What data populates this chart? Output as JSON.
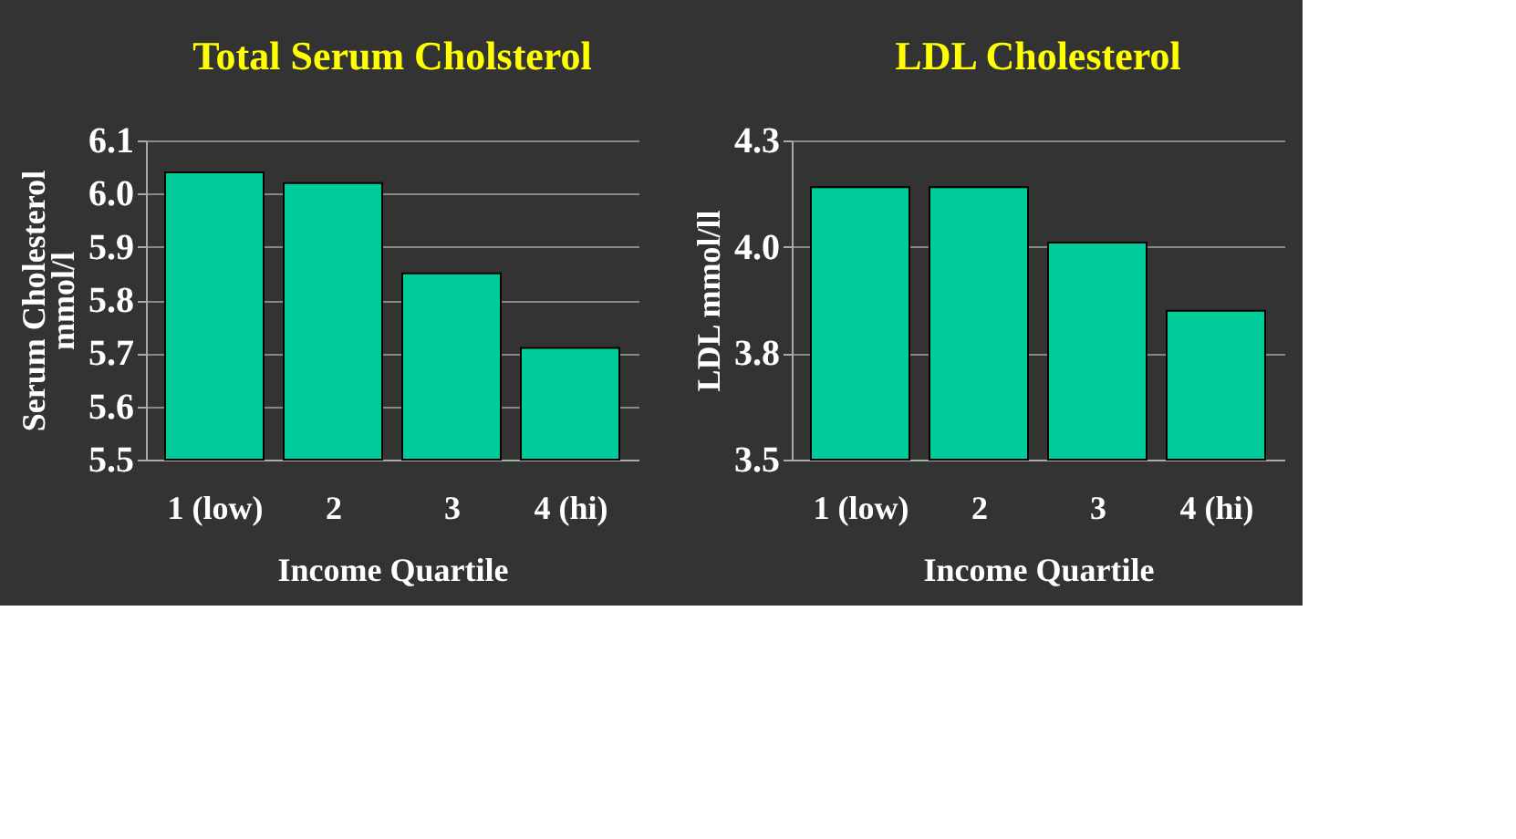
{
  "chart_data": [
    {
      "type": "bar",
      "title": "Total Serum Cholsterol",
      "xlabel": "Income Quartile",
      "ylabel": "Serum Cholesterol\nmmol/l",
      "categories": [
        "1 (low)",
        "2",
        "3",
        "4 (hi)"
      ],
      "values": [
        6.04,
        6.02,
        5.85,
        5.71
      ],
      "color": "#00cc99",
      "ylim": [
        5.5,
        6.1
      ],
      "yticks": [
        5.5,
        5.6,
        5.7,
        5.8,
        5.9,
        {
          "value": 6.0,
          "label": "6.0"
        },
        6.1
      ],
      "grid": "y"
    },
    {
      "type": "bar",
      "title": "LDL Cholesterol",
      "xlabel": "Income Quartile",
      "ylabel": "LDL mmol/ll",
      "categories": [
        "1 (low)",
        "2",
        "3",
        "4 (hi)"
      ],
      "values": [
        4.14,
        4.14,
        4.01,
        3.85
      ],
      "color": "#00cc99",
      "ylim": [
        3.5,
        4.25
      ],
      "yticks": [
        {
          "value": 3.5,
          "label": "3.5"
        },
        {
          "value": 3.75,
          "label": "3.8"
        },
        {
          "value": 4.0,
          "label": "4.0"
        },
        {
          "value": 4.25,
          "label": "4.3"
        }
      ],
      "grid": "y"
    }
  ]
}
